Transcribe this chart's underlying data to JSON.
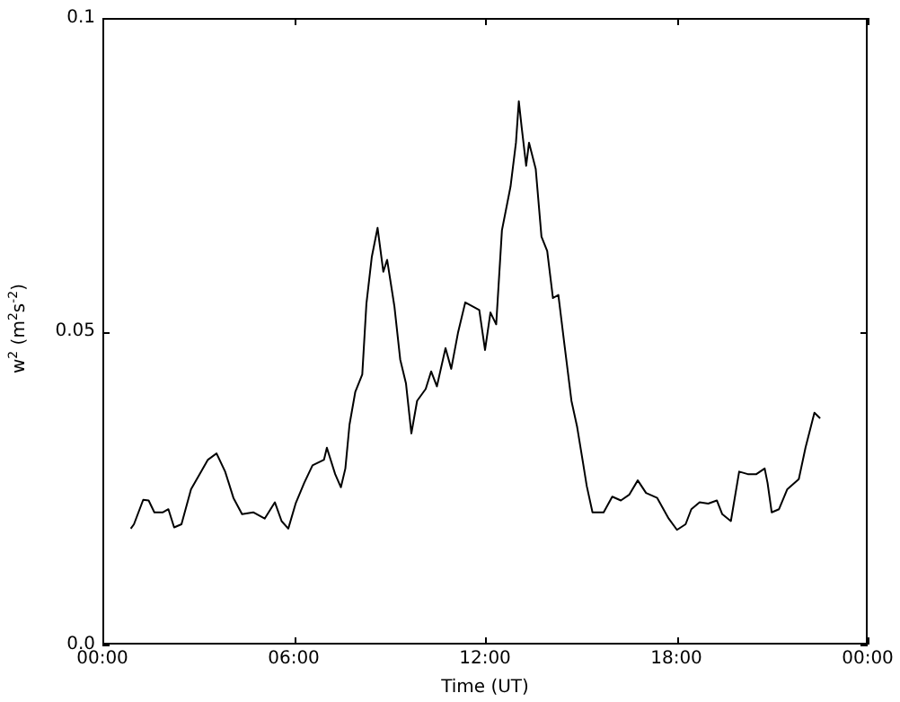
{
  "chart_data": {
    "type": "line",
    "xlabel": "Time (UT)",
    "ylabel": "w$^{2}$  (m$^{2}$s$^{-2}$)",
    "color": "#000000",
    "marker": "none",
    "line_style": "solid",
    "grid": false,
    "legend": false,
    "xlim": [
      0,
      24
    ],
    "xticks": [
      {
        "value": 0,
        "label": "00:00"
      },
      {
        "value": 6,
        "label": "06:00"
      },
      {
        "value": 12,
        "label": "12:00"
      },
      {
        "value": 18,
        "label": "18:00"
      },
      {
        "value": 24,
        "label": "00:00"
      }
    ],
    "ylim": [
      0,
      0.1
    ],
    "yticks": [
      {
        "value": 0,
        "label": "0.0"
      },
      0.05,
      0.1
    ],
    "x": [
      0.89,
      0.99,
      1.28,
      1.45,
      1.63,
      1.9,
      2.07,
      2.25,
      2.48,
      2.78,
      3.05,
      3.31,
      3.58,
      3.85,
      4.11,
      4.38,
      4.73,
      5.09,
      5.41,
      5.62,
      5.83,
      6.06,
      6.33,
      6.59,
      6.95,
      7.04,
      7.3,
      7.48,
      7.62,
      7.75,
      7.93,
      8.15,
      8.28,
      8.45,
      8.63,
      8.81,
      8.93,
      9.16,
      9.34,
      9.52,
      9.69,
      9.87,
      10.14,
      10.31,
      10.49,
      10.76,
      10.94,
      11.15,
      11.38,
      11.64,
      11.82,
      12.0,
      12.17,
      12.35,
      12.53,
      12.8,
      12.97,
      13.06,
      13.15,
      13.29,
      13.38,
      13.59,
      13.77,
      13.95,
      14.13,
      14.3,
      14.48,
      14.71,
      14.89,
      15.07,
      15.19,
      15.37,
      15.72,
      15.99,
      16.26,
      16.52,
      16.79,
      17.05,
      17.4,
      17.76,
      18.02,
      18.29,
      18.47,
      18.73,
      19.0,
      19.27,
      19.44,
      19.71,
      19.97,
      20.24,
      20.51,
      20.77,
      20.86,
      20.99,
      21.22,
      21.48,
      21.84,
      22.05,
      22.33,
      22.51
    ],
    "values": [
      0.0185,
      0.0192,
      0.0231,
      0.023,
      0.0211,
      0.0211,
      0.0216,
      0.0187,
      0.0192,
      0.0248,
      0.0272,
      0.0295,
      0.0305,
      0.0276,
      0.0234,
      0.0208,
      0.0211,
      0.0201,
      0.0227,
      0.0197,
      0.0185,
      0.0225,
      0.0258,
      0.0286,
      0.0295,
      0.0314,
      0.0272,
      0.0251,
      0.0281,
      0.0351,
      0.0403,
      0.0431,
      0.0544,
      0.0619,
      0.0665,
      0.0595,
      0.0614,
      0.0539,
      0.0455,
      0.0417,
      0.0337,
      0.0389,
      0.0408,
      0.0436,
      0.0412,
      0.0473,
      0.044,
      0.0497,
      0.0546,
      0.0539,
      0.0534,
      0.047,
      0.053,
      0.0511,
      0.0661,
      0.0731,
      0.0801,
      0.0867,
      0.0825,
      0.0764,
      0.0801,
      0.0759,
      0.0651,
      0.0628,
      0.0553,
      0.0558,
      0.0483,
      0.0389,
      0.0347,
      0.0291,
      0.0253,
      0.0211,
      0.0211,
      0.0236,
      0.023,
      0.0239,
      0.0262,
      0.0242,
      0.0234,
      0.0201,
      0.0183,
      0.0192,
      0.0216,
      0.0227,
      0.0225,
      0.023,
      0.0208,
      0.0197,
      0.0276,
      0.0272,
      0.0272,
      0.0281,
      0.0258,
      0.0211,
      0.0216,
      0.0248,
      0.0264,
      0.0314,
      0.037,
      0.0361
    ]
  }
}
